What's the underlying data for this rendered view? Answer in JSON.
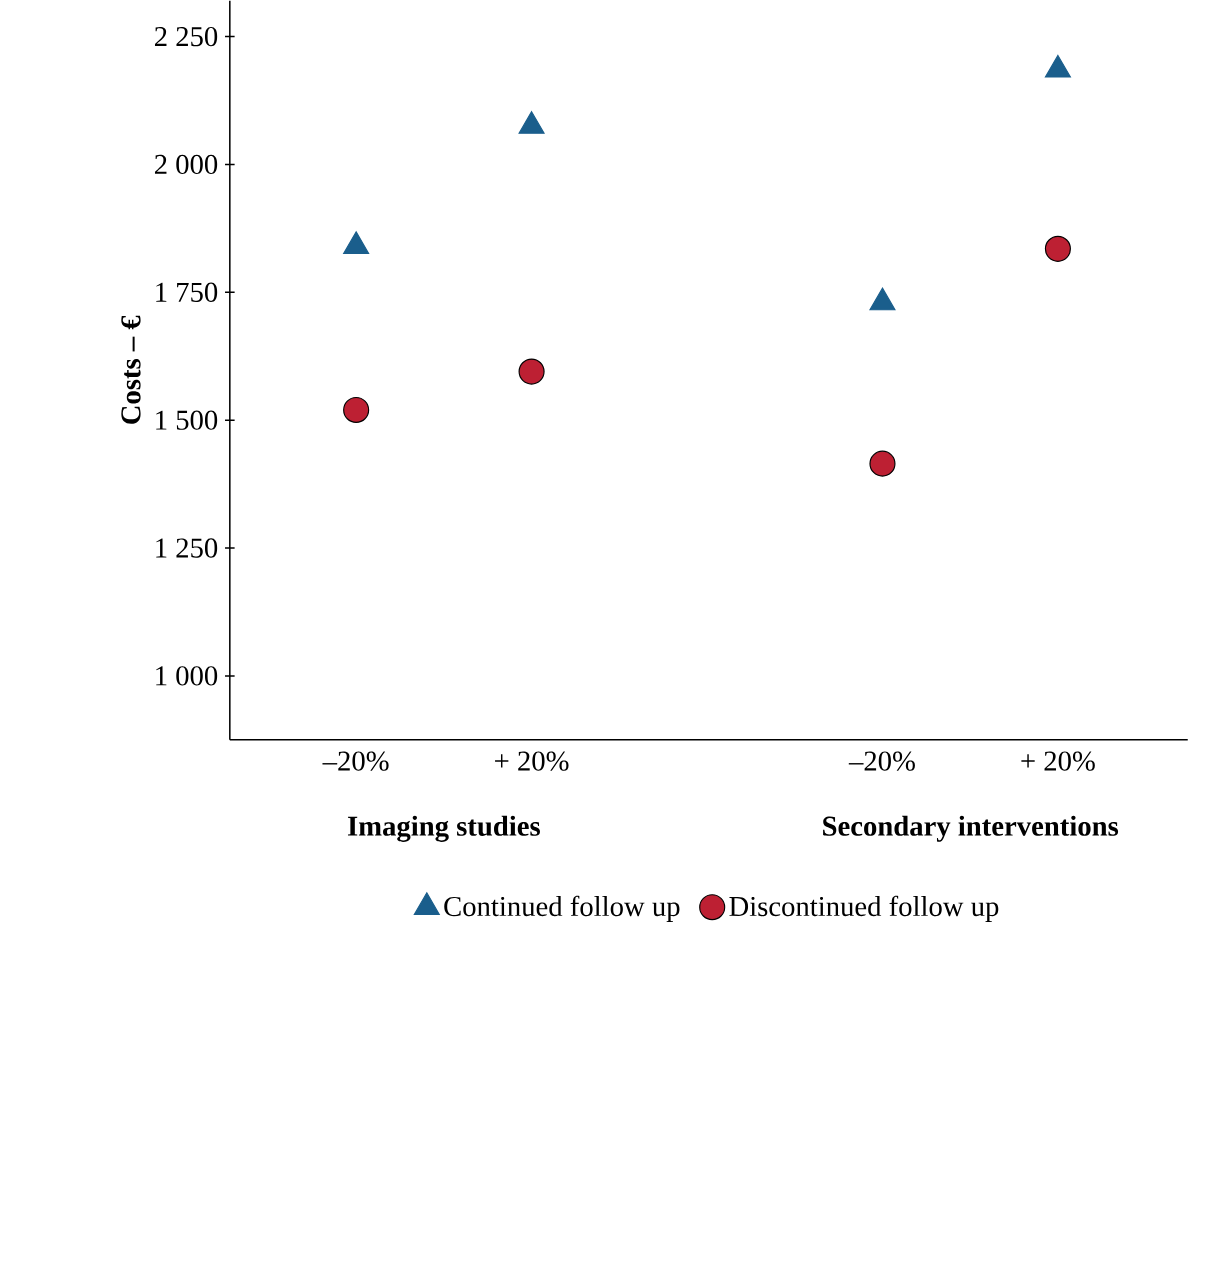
{
  "chart_data": {
    "type": "scatter",
    "ylabel": "Costs – €",
    "categories": [
      "–20%",
      "+ 20%",
      null,
      "–20%",
      "+ 20%"
    ],
    "annotations": [
      "Imaging studies",
      "Secondary interventions"
    ],
    "series": [
      {
        "name": "Continued follow up",
        "color": "#1a5e8c",
        "marker": "triangle",
        "values": [
          1840,
          2075,
          null,
          1730,
          2185
        ]
      },
      {
        "name": "Discontinued follow up",
        "color": "#bd2033",
        "marker": "circle",
        "values": [
          1520,
          1595,
          null,
          1415,
          1835
        ]
      }
    ],
    "ylim": [
      875,
      2320
    ],
    "yticks": [
      {
        "value": 1000,
        "label": "1 000"
      },
      {
        "value": 1250,
        "label": "1 250"
      },
      {
        "value": 1500,
        "label": "1 500"
      },
      {
        "value": 1750,
        "label": "1 750"
      },
      {
        "value": 2000,
        "label": "2 000"
      },
      {
        "value": 2250,
        "label": "2 250"
      }
    ],
    "grid": false,
    "legend": "bottom"
  }
}
